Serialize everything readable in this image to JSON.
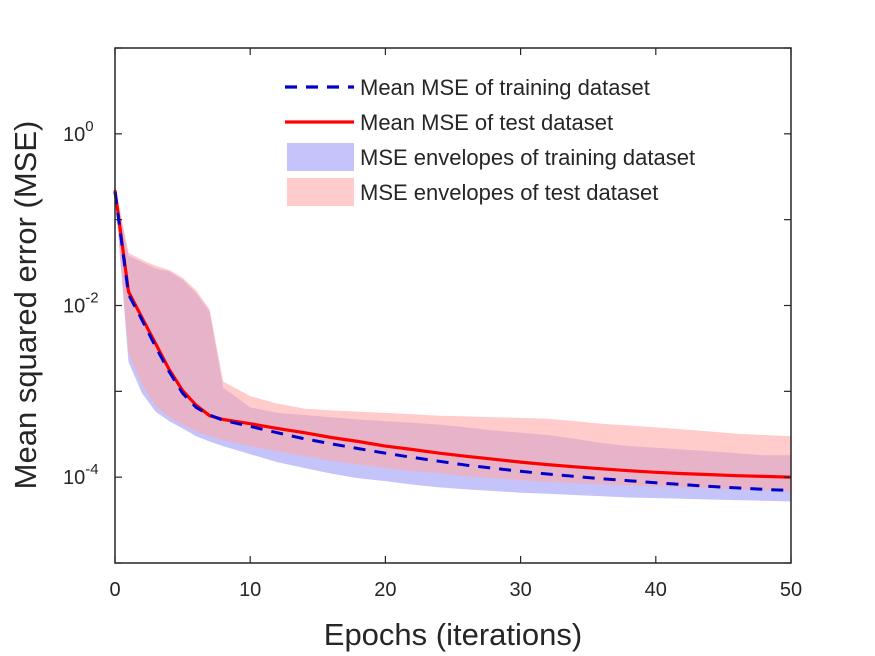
{
  "chart_data": {
    "type": "line",
    "title": "",
    "xlabel": "Epochs (iterations)",
    "ylabel": "Mean squared error (MSE)",
    "xlim": [
      0,
      50
    ],
    "ylim": [
      1e-05,
      10
    ],
    "yscale": "log",
    "grid": false,
    "legend_position": "top-right",
    "x_ticks": [
      {
        "value": 0,
        "label": "0"
      },
      {
        "value": 10,
        "label": "10"
      },
      {
        "value": 20,
        "label": "20"
      },
      {
        "value": 30,
        "label": "30"
      },
      {
        "value": 40,
        "label": "40"
      },
      {
        "value": 50,
        "label": "50"
      }
    ],
    "y_ticks": [
      {
        "value": 0.0001,
        "base": "10",
        "exp": "-4"
      },
      {
        "value": 0.01,
        "base": "10",
        "exp": "-2"
      },
      {
        "value": 1,
        "base": "10",
        "exp": "0"
      }
    ],
    "x": [
      0,
      1,
      2,
      3,
      4,
      5,
      6,
      7,
      8,
      10,
      12,
      14,
      16,
      18,
      20,
      22,
      24,
      26,
      28,
      30,
      32,
      34,
      36,
      38,
      40,
      42,
      44,
      46,
      48,
      50
    ],
    "series": [
      {
        "name": "Mean MSE of training dataset",
        "kind": "line",
        "color": "#0000cc",
        "dash": true,
        "values": [
          0.21,
          0.0135,
          0.0068,
          0.0033,
          0.0017,
          0.00095,
          0.00065,
          0.00053,
          0.00046,
          0.00039,
          0.00033,
          0.00028,
          0.000245,
          0.000215,
          0.00019,
          0.00017,
          0.000153,
          0.000138,
          0.000127,
          0.000117,
          0.000109,
          0.000102,
          9.6e-05,
          9.1e-05,
          8.6e-05,
          8.2e-05,
          7.8e-05,
          7.5e-05,
          7.2e-05,
          7e-05
        ]
      },
      {
        "name": "Mean MSE of test dataset",
        "kind": "line",
        "color": "#ff0000",
        "dash": false,
        "values": [
          0.22,
          0.0145,
          0.0072,
          0.0036,
          0.0018,
          0.00102,
          0.00069,
          0.00052,
          0.00047,
          0.00042,
          0.00037,
          0.00033,
          0.00029,
          0.00026,
          0.00023,
          0.00021,
          0.00019,
          0.000175,
          0.000162,
          0.00015,
          0.00014,
          0.000132,
          0.000125,
          0.000119,
          0.000114,
          0.00011,
          0.000107,
          0.000104,
          0.000102,
          0.0001
        ]
      },
      {
        "name": "MSE envelopes of training dataset",
        "kind": "band",
        "color": "#a0a0f8",
        "opacity": 0.62,
        "upper": [
          0.24,
          0.038,
          0.032,
          0.027,
          0.025,
          0.02,
          0.014,
          0.0085,
          0.0011,
          0.00065,
          0.00056,
          0.00053,
          0.0005,
          0.00047,
          0.00045,
          0.00043,
          0.00041,
          0.00038,
          0.00035,
          0.00033,
          0.00031,
          0.00028,
          0.00025,
          0.00023,
          0.00022,
          0.00021,
          0.0002,
          0.00019,
          0.00018,
          0.00018
        ],
        "lower": [
          0.2,
          0.0022,
          0.00095,
          0.00058,
          0.00045,
          0.00037,
          0.0003,
          0.00026,
          0.00023,
          0.000185,
          0.00015,
          0.000128,
          0.00011,
          9.7e-05,
          9e-05,
          8.2e-05,
          7.6e-05,
          7.2e-05,
          6.9e-05,
          6.6e-05,
          6.4e-05,
          6.2e-05,
          6e-05,
          5.8e-05,
          5.7e-05,
          5.6e-05,
          5.5e-05,
          5.4e-05,
          5.3e-05,
          5.2e-05
        ]
      },
      {
        "name": "MSE envelopes of test dataset",
        "kind": "band",
        "color": "#ffa8a8",
        "opacity": 0.6,
        "upper": [
          0.25,
          0.041,
          0.034,
          0.029,
          0.026,
          0.021,
          0.015,
          0.009,
          0.0013,
          0.00088,
          0.00072,
          0.00063,
          0.0006,
          0.00058,
          0.00056,
          0.00054,
          0.00052,
          0.00051,
          0.0005,
          0.00049,
          0.00048,
          0.00045,
          0.00042,
          0.0004,
          0.00038,
          0.00036,
          0.00034,
          0.00032,
          0.00031,
          0.0003
        ],
        "lower": [
          0.2,
          0.0028,
          0.0012,
          0.00068,
          0.0005,
          0.00041,
          0.00034,
          0.0003,
          0.00027,
          0.00023,
          0.0002,
          0.000175,
          0.000155,
          0.00014,
          0.000128,
          0.000118,
          0.00011,
          0.000103,
          9.7e-05,
          9.2e-05,
          8.8e-05,
          8.5e-05,
          8.2e-05,
          8e-05,
          7.8e-05,
          7.6e-05,
          7.4e-05,
          7.2e-05,
          7e-05,
          6.8e-05
        ]
      }
    ]
  }
}
